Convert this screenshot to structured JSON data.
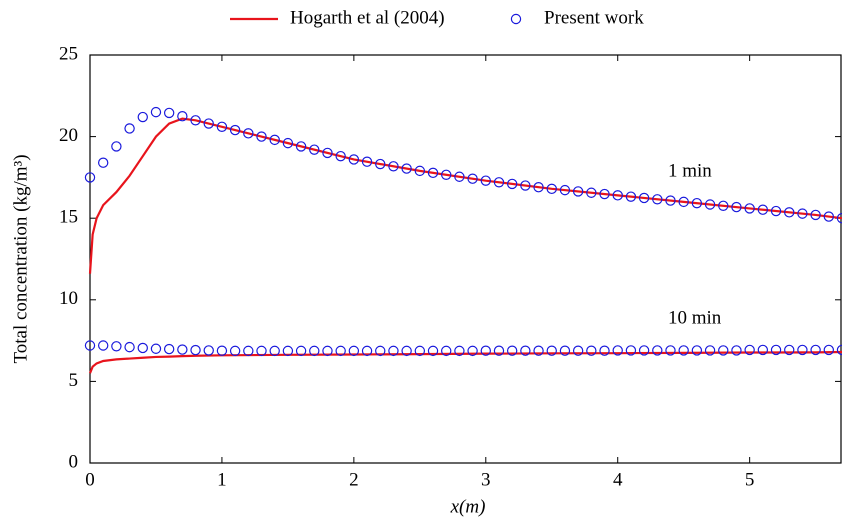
{
  "chart_data": {
    "type": "line",
    "xlabel": "x(m)",
    "ylabel": "Total concentration (kg/m³)",
    "xlim": [
      0,
      5.7
    ],
    "ylim": [
      0,
      25
    ],
    "xticks": [
      0,
      1,
      2,
      3,
      4,
      5
    ],
    "yticks": [
      0,
      5,
      10,
      15,
      20,
      25
    ],
    "annotations": [
      "1 min",
      "10 min"
    ],
    "series": [
      {
        "name": "Hogarth et al (2004)",
        "color": "#e8141c",
        "style": "line",
        "x": [
          0,
          0.02,
          0.05,
          0.1,
          0.2,
          0.3,
          0.4,
          0.5,
          0.6,
          0.7,
          0.8,
          1,
          1.5,
          2,
          2.5,
          3,
          3.5,
          4,
          4.5,
          5,
          5.5,
          5.7
        ],
        "values": [
          [
            11.6,
            14.0,
            15.0,
            15.8,
            16.6,
            17.6,
            18.8,
            20.0,
            20.8,
            21.1,
            21.0,
            20.6,
            19.6,
            18.6,
            17.9,
            17.3,
            16.8,
            16.4,
            16.0,
            15.6,
            15.2,
            15.0
          ],
          [
            5.5,
            5.9,
            6.1,
            6.25,
            6.35,
            6.4,
            6.45,
            6.5,
            6.52,
            6.55,
            6.57,
            6.6,
            6.63,
            6.65,
            6.67,
            6.7,
            6.72,
            6.73,
            6.75,
            6.77,
            6.78,
            6.8
          ]
        ]
      },
      {
        "name": "Present work",
        "color": "#1a1adc",
        "style": "marker",
        "x": [
          0,
          0.1,
          0.2,
          0.3,
          0.4,
          0.5,
          0.6,
          0.7,
          0.8,
          0.9,
          1.0,
          1.1,
          1.2,
          1.3,
          1.4,
          1.5,
          1.6,
          1.7,
          1.8,
          1.9,
          2.0,
          2.1,
          2.2,
          2.3,
          2.4,
          2.5,
          2.6,
          2.7,
          2.8,
          2.9,
          3.0,
          3.1,
          3.2,
          3.3,
          3.4,
          3.5,
          3.6,
          3.7,
          3.8,
          3.9,
          4.0,
          4.1,
          4.2,
          4.3,
          4.4,
          4.5,
          4.6,
          4.7,
          4.8,
          4.9,
          5.0,
          5.1,
          5.2,
          5.3,
          5.4,
          5.5,
          5.6,
          5.7
        ],
        "values": [
          [
            17.5,
            18.4,
            19.4,
            20.5,
            21.2,
            21.5,
            21.45,
            21.25,
            21.0,
            20.8,
            20.6,
            20.4,
            20.2,
            20.0,
            19.8,
            19.6,
            19.4,
            19.2,
            19.0,
            18.8,
            18.6,
            18.46,
            18.32,
            18.18,
            18.04,
            17.9,
            17.78,
            17.66,
            17.54,
            17.42,
            17.3,
            17.2,
            17.1,
            17.0,
            16.9,
            16.8,
            16.72,
            16.64,
            16.56,
            16.48,
            16.4,
            16.32,
            16.24,
            16.16,
            16.08,
            16.0,
            15.92,
            15.84,
            15.76,
            15.68,
            15.6,
            15.52,
            15.44,
            15.36,
            15.28,
            15.2,
            15.1,
            15.0
          ],
          [
            7.2,
            7.2,
            7.15,
            7.1,
            7.05,
            7.0,
            6.98,
            6.95,
            6.92,
            6.9,
            6.88,
            6.87,
            6.87,
            6.87,
            6.87,
            6.87,
            6.87,
            6.87,
            6.87,
            6.87,
            6.87,
            6.87,
            6.87,
            6.87,
            6.87,
            6.87,
            6.87,
            6.87,
            6.87,
            6.87,
            6.88,
            6.88,
            6.88,
            6.88,
            6.88,
            6.88,
            6.88,
            6.88,
            6.88,
            6.88,
            6.9,
            6.9,
            6.9,
            6.9,
            6.9,
            6.9,
            6.9,
            6.9,
            6.9,
            6.9,
            6.93,
            6.93,
            6.93,
            6.93,
            6.93,
            6.93,
            6.93,
            6.93
          ]
        ]
      }
    ]
  }
}
